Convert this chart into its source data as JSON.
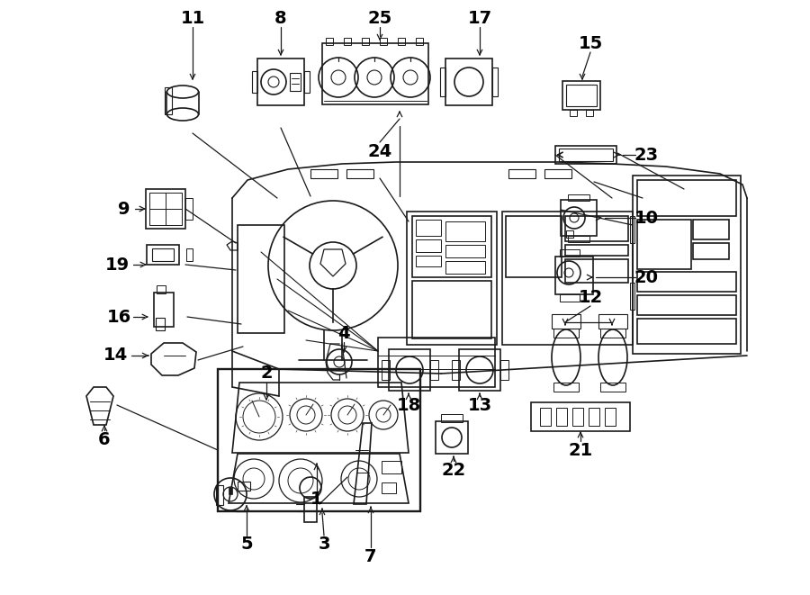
{
  "bg_color": "#ffffff",
  "line_color": "#1a1a1a",
  "fig_width": 9.0,
  "fig_height": 6.61,
  "dpi": 100,
  "xlim": [
    0,
    900
  ],
  "ylim": [
    0,
    661
  ]
}
